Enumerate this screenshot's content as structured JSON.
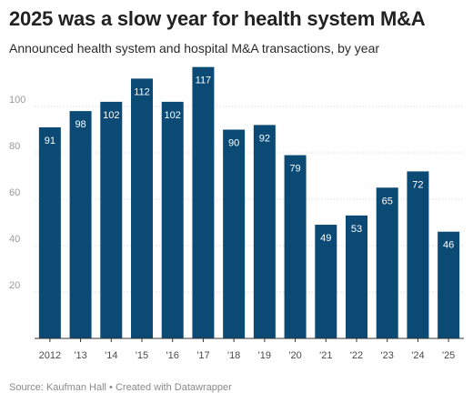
{
  "header": {
    "title": "2025 was a slow year for health system M&A",
    "subtitle": "Announced health system and hospital M&A transactions, by year"
  },
  "chart_data": {
    "type": "bar",
    "categories": [
      "2012",
      "'13",
      "'14",
      "'15",
      "'16",
      "'17",
      "'18",
      "'19",
      "'20",
      "'21",
      "'22",
      "'23",
      "'24",
      "'25"
    ],
    "values": [
      91,
      98,
      102,
      112,
      102,
      117,
      90,
      92,
      79,
      49,
      53,
      65,
      72,
      46
    ],
    "ylim": [
      0,
      120
    ],
    "yticks": [
      20,
      40,
      60,
      80,
      100
    ],
    "grid": true,
    "bar_color": "#0b4a75",
    "label_color": "#ffffff"
  },
  "footer": {
    "source": "Source: Kaufman Hall • Created with Datawrapper"
  }
}
